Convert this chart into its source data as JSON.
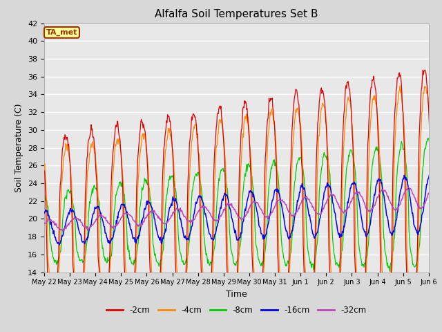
{
  "title": "Alfalfa Soil Temperatures Set B",
  "xlabel": "Time",
  "ylabel": "Soil Temperature (C)",
  "ylim": [
    14,
    42
  ],
  "yticks": [
    14,
    16,
    18,
    20,
    22,
    24,
    26,
    28,
    30,
    32,
    34,
    36,
    38,
    40,
    42
  ],
  "legend_labels": [
    "-2cm",
    "-4cm",
    "-8cm",
    "-16cm",
    "-32cm"
  ],
  "legend_colors": [
    "#dd0000",
    "#ff8800",
    "#00cc00",
    "#0000ee",
    "#bb44bb"
  ],
  "bg_color": "#d8d8d8",
  "plot_bg_color": "#e8e8e8",
  "annotation_text": "TA_met",
  "annotation_bg": "#ffff99",
  "annotation_border": "#993300",
  "figsize": [
    6.4,
    4.8
  ],
  "dpi": 100
}
